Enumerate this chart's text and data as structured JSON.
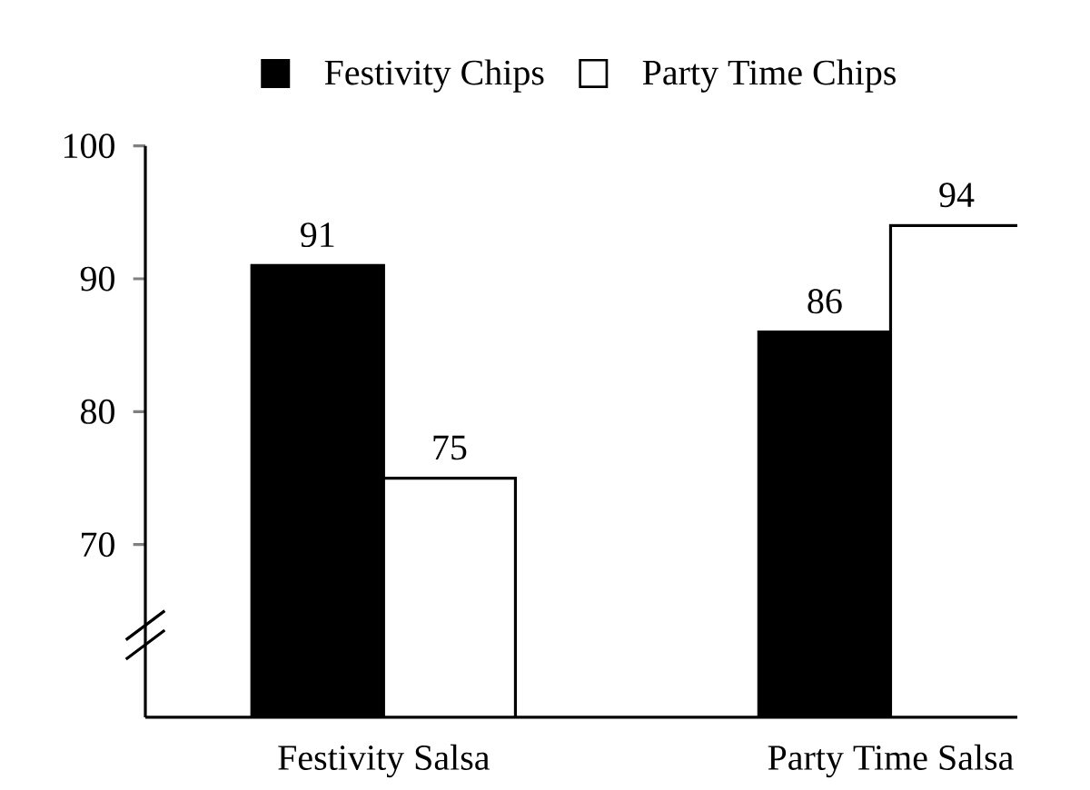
{
  "chart_data": {
    "type": "bar",
    "categories": [
      "Festivity Salsa",
      "Party Time Salsa"
    ],
    "series": [
      {
        "name": "Festivity Chips",
        "color": "#000000",
        "values": [
          91,
          86
        ]
      },
      {
        "name": "Party Time Chips",
        "color": "#ffffff",
        "values": [
          75,
          94
        ]
      }
    ],
    "ylim": [
      57,
      100
    ],
    "yticks": [
      70,
      80,
      90,
      100
    ],
    "data_labels": true,
    "legend": "top",
    "grid": false
  }
}
